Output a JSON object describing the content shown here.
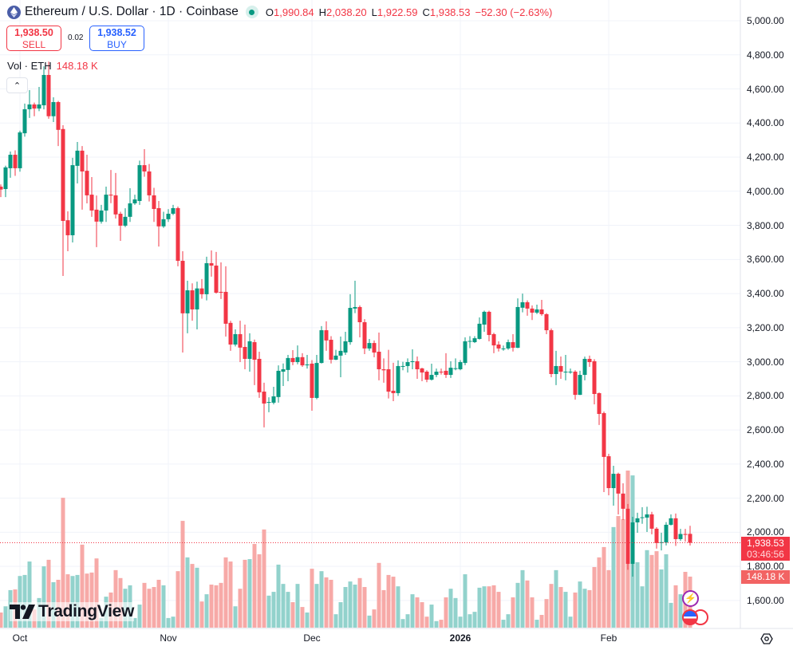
{
  "header": {
    "title": "Ethereum / U.S. Dollar · 1D · Coinbase",
    "market_status": "open",
    "open_label": "O",
    "open": "1,990.84",
    "high_label": "H",
    "high": "2,038.20",
    "low_label": "L",
    "low": "1,922.59",
    "close_label": "C",
    "close": "1,938.53",
    "change": "−52.30 (−2.63%)"
  },
  "trade": {
    "sell_price": "1,938.50",
    "sell_label": "SELL",
    "spread": "0.02",
    "buy_price": "1,938.52",
    "buy_label": "BUY"
  },
  "volume_legend": {
    "label": "Vol · ETH",
    "value": "148.18 K"
  },
  "price_tag": {
    "price": "1,938.53",
    "countdown": "03:46:56"
  },
  "volume_tag": "148.18 K",
  "branding": "TradingView",
  "colors": {
    "up": "#089981",
    "down": "#f23645",
    "volume_up": "#92d2cc",
    "volume_down": "#f7a9a7",
    "grid": "#f0f3fa"
  },
  "chart_data": {
    "type": "candlestick",
    "symbol": "ETH/USD",
    "interval": "1D",
    "y_axis": {
      "range": [
        1500,
        5000
      ],
      "ticks": [
        "5,000.00",
        "4,800.00",
        "4,600.00",
        "4,400.00",
        "4,200.00",
        "4,000.00",
        "3,800.00",
        "3,600.00",
        "3,400.00",
        "3,200.00",
        "3,000.00",
        "2,800.00",
        "2,600.00",
        "2,400.00",
        "2,200.00",
        "2,000.00",
        "1,800.00",
        "1,600.00"
      ],
      "tick_values": [
        5000,
        4800,
        4600,
        4400,
        4200,
        4000,
        3800,
        3600,
        3400,
        3200,
        3000,
        2800,
        2600,
        2400,
        2200,
        2000,
        1800,
        1600
      ]
    },
    "x_axis": {
      "ticks": [
        {
          "label": "Oct",
          "date": "2025-10-01"
        },
        {
          "label": "Nov",
          "date": "2025-11-01"
        },
        {
          "label": "Dec",
          "date": "2025-12-01"
        },
        {
          "label": "2026",
          "date": "2026-01-01"
        },
        {
          "label": "Feb",
          "date": "2026-02-01"
        }
      ]
    },
    "grid": true,
    "volume_unit": "K",
    "columns": [
      "date",
      "open",
      "high",
      "low",
      "close",
      "volume"
    ],
    "candles": [
      [
        "2025-09-27",
        4027,
        4040,
        3966,
        4010,
        44
      ],
      [
        "2025-09-28",
        4013,
        4150,
        3966,
        4140,
        62
      ],
      [
        "2025-09-29",
        4135,
        4233,
        4079,
        4214,
        109
      ],
      [
        "2025-09-30",
        4214,
        4240,
        4090,
        4135,
        111
      ],
      [
        "2025-10-01",
        4135,
        4355,
        4115,
        4345,
        150
      ],
      [
        "2025-10-02",
        4340,
        4514,
        4320,
        4481,
        153
      ],
      [
        "2025-10-03",
        4481,
        4593,
        4430,
        4509,
        192
      ],
      [
        "2025-10-04",
        4509,
        4520,
        4440,
        4485,
        53
      ],
      [
        "2025-10-05",
        4485,
        4612,
        4470,
        4509,
        86
      ],
      [
        "2025-10-06",
        4504,
        4733,
        4480,
        4682,
        178
      ],
      [
        "2025-10-07",
        4682,
        4760,
        4425,
        4440,
        197
      ],
      [
        "2025-10-08",
        4440,
        4551,
        4406,
        4523,
        132
      ],
      [
        "2025-10-09",
        4523,
        4530,
        4265,
        4360,
        139
      ],
      [
        "2025-10-10",
        4365,
        4387,
        3503,
        3826,
        377
      ],
      [
        "2025-10-11",
        3830,
        3882,
        3648,
        3742,
        155
      ],
      [
        "2025-10-12",
        3742,
        4196,
        3700,
        4153,
        150
      ],
      [
        "2025-10-13",
        4149,
        4289,
        4046,
        4238,
        153
      ],
      [
        "2025-10-14",
        4238,
        4265,
        3892,
        4116,
        241
      ],
      [
        "2025-10-15",
        4120,
        4214,
        3929,
        3976,
        157
      ],
      [
        "2025-10-16",
        3980,
        4083,
        3850,
        3887,
        160
      ],
      [
        "2025-10-17",
        3892,
        3975,
        3672,
        3822,
        201
      ],
      [
        "2025-10-18",
        3822,
        3920,
        3810,
        3887,
        28
      ],
      [
        "2025-10-19",
        3887,
        4027,
        3820,
        3980,
        90
      ],
      [
        "2025-10-20",
        3980,
        4125,
        3930,
        3975,
        102
      ],
      [
        "2025-10-21",
        3976,
        4107,
        3840,
        3864,
        167
      ],
      [
        "2025-10-22",
        3868,
        3880,
        3709,
        3798,
        144
      ],
      [
        "2025-10-23",
        3798,
        3900,
        3790,
        3850,
        113
      ],
      [
        "2025-10-24",
        3850,
        4018,
        3820,
        3929,
        123
      ],
      [
        "2025-10-25",
        3929,
        3980,
        3920,
        3952,
        28
      ],
      [
        "2025-10-26",
        3943,
        4180,
        3920,
        4153,
        67
      ],
      [
        "2025-10-27",
        4153,
        4247,
        4085,
        4116,
        130
      ],
      [
        "2025-10-28",
        4116,
        4160,
        3940,
        3976,
        113
      ],
      [
        "2025-10-29",
        3976,
        4020,
        3820,
        3896,
        118
      ],
      [
        "2025-10-30",
        3901,
        3943,
        3676,
        3794,
        139
      ],
      [
        "2025-10-31",
        3794,
        3880,
        3785,
        3836,
        123
      ],
      [
        "2025-11-01",
        3836,
        3895,
        3820,
        3868,
        28
      ],
      [
        "2025-11-02",
        3868,
        3920,
        3860,
        3901,
        32
      ],
      [
        "2025-11-03",
        3901,
        3910,
        3560,
        3592,
        164
      ],
      [
        "2025-11-04",
        3592,
        3648,
        3054,
        3284,
        310
      ],
      [
        "2025-11-05",
        3284,
        3475,
        3167,
        3419,
        204
      ],
      [
        "2025-11-06",
        3419,
        3460,
        3241,
        3307,
        185
      ],
      [
        "2025-11-07",
        3307,
        3470,
        3190,
        3430,
        174
      ],
      [
        "2025-11-08",
        3430,
        3485,
        3370,
        3396,
        76
      ],
      [
        "2025-11-09",
        3396,
        3616,
        3360,
        3578,
        97
      ],
      [
        "2025-11-10",
        3578,
        3653,
        3499,
        3564,
        125
      ],
      [
        "2025-11-11",
        3564,
        3644,
        3400,
        3405,
        123
      ],
      [
        "2025-11-12",
        3410,
        3583,
        3368,
        3405,
        130
      ],
      [
        "2025-11-13",
        3410,
        3560,
        3148,
        3223,
        204
      ],
      [
        "2025-11-14",
        3228,
        3240,
        3064,
        3101,
        192
      ],
      [
        "2025-11-15",
        3101,
        3190,
        3090,
        3162,
        62
      ],
      [
        "2025-11-16",
        3162,
        3241,
        2998,
        3083,
        113
      ],
      [
        "2025-11-17",
        3087,
        3218,
        2956,
        3017,
        197
      ],
      [
        "2025-11-18",
        3017,
        3167,
        2942,
        3120,
        199
      ],
      [
        "2025-11-19",
        3115,
        3130,
        2863,
        3012,
        243
      ],
      [
        "2025-11-20",
        3017,
        3059,
        2788,
        2821,
        213
      ],
      [
        "2025-11-21",
        2825,
        2877,
        2615,
        2755,
        285
      ],
      [
        "2025-11-22",
        2764,
        2792,
        2704,
        2764,
        93
      ],
      [
        "2025-11-23",
        2760,
        2853,
        2750,
        2797,
        104
      ],
      [
        "2025-11-24",
        2793,
        2979,
        2760,
        2947,
        183
      ],
      [
        "2025-11-25",
        2942,
        2990,
        2858,
        2956,
        127
      ],
      [
        "2025-11-26",
        2952,
        3040,
        2886,
        3022,
        104
      ],
      [
        "2025-11-27",
        3022,
        3068,
        2980,
        2998,
        74
      ],
      [
        "2025-11-28",
        2998,
        3096,
        2985,
        3027,
        127
      ],
      [
        "2025-11-29",
        3027,
        3050,
        2970,
        2979,
        60
      ],
      [
        "2025-11-30",
        2984,
        3040,
        2960,
        2984,
        44
      ],
      [
        "2025-12-01",
        2989,
        3010,
        2713,
        2788,
        171
      ],
      [
        "2025-12-02",
        2788,
        3040,
        2780,
        2993,
        127
      ],
      [
        "2025-12-03",
        2993,
        3209,
        2990,
        3185,
        164
      ],
      [
        "2025-12-04",
        3185,
        3237,
        3064,
        3125,
        146
      ],
      [
        "2025-12-05",
        3129,
        3150,
        2990,
        3012,
        139
      ],
      [
        "2025-12-06",
        3012,
        3070,
        3010,
        3036,
        39
      ],
      [
        "2025-12-07",
        3036,
        3148,
        2909,
        3064,
        74
      ],
      [
        "2025-12-08",
        3054,
        3176,
        3040,
        3120,
        118
      ],
      [
        "2025-12-09",
        3115,
        3396,
        3100,
        3316,
        134
      ],
      [
        "2025-12-10",
        3312,
        3475,
        3285,
        3321,
        125
      ],
      [
        "2025-12-11",
        3321,
        3330,
        3143,
        3232,
        144
      ],
      [
        "2025-12-12",
        3232,
        3250,
        3045,
        3078,
        118
      ],
      [
        "2025-12-13",
        3078,
        3134,
        3065,
        3110,
        35
      ],
      [
        "2025-12-14",
        3110,
        3125,
        3026,
        3054,
        53
      ],
      [
        "2025-12-15",
        3059,
        3171,
        2891,
        2956,
        188
      ],
      [
        "2025-12-16",
        2956,
        3020,
        2877,
        2950,
        109
      ],
      [
        "2025-12-17",
        2956,
        3070,
        2785,
        2825,
        153
      ],
      [
        "2025-12-18",
        2830,
        2994,
        2769,
        2816,
        148
      ],
      [
        "2025-12-19",
        2816,
        3008,
        2800,
        2975,
        120
      ],
      [
        "2025-12-20",
        2975,
        3000,
        2950,
        2975,
        25
      ],
      [
        "2025-12-21",
        2975,
        3020,
        2937,
        2998,
        39
      ],
      [
        "2025-12-22",
        2998,
        3073,
        2956,
        3003,
        97
      ],
      [
        "2025-12-23",
        3003,
        3031,
        2900,
        2956,
        88
      ],
      [
        "2025-12-24",
        2961,
        2965,
        2886,
        2937,
        74
      ],
      [
        "2025-12-25",
        2942,
        2950,
        2880,
        2895,
        32
      ],
      [
        "2025-12-26",
        2895,
        2989,
        2890,
        2923,
        67
      ],
      [
        "2025-12-27",
        2923,
        2960,
        2910,
        2942,
        19
      ],
      [
        "2025-12-28",
        2942,
        2960,
        2925,
        2940,
        23
      ],
      [
        "2025-12-29",
        2947,
        3050,
        2905,
        2923,
        88
      ],
      [
        "2025-12-30",
        2923,
        3003,
        2905,
        2965,
        113
      ],
      [
        "2025-12-31",
        2960,
        3020,
        2950,
        2962,
        86
      ],
      [
        "2026-01-01",
        2956,
        3010,
        2950,
        2998,
        32
      ],
      [
        "2026-01-02",
        2993,
        3143,
        2980,
        3120,
        155
      ],
      [
        "2026-01-03",
        3120,
        3150,
        3080,
        3122,
        39
      ],
      [
        "2026-01-04",
        3115,
        3150,
        3110,
        3138,
        46
      ],
      [
        "2026-01-05",
        3134,
        3260,
        3130,
        3223,
        116
      ],
      [
        "2026-01-06",
        3218,
        3300,
        3176,
        3293,
        120
      ],
      [
        "2026-01-07",
        3293,
        3300,
        3120,
        3157,
        120
      ],
      [
        "2026-01-08",
        3162,
        3170,
        3050,
        3096,
        123
      ],
      [
        "2026-01-09",
        3101,
        3120,
        3060,
        3078,
        104
      ],
      [
        "2026-01-10",
        3078,
        3095,
        3065,
        3078,
        23
      ],
      [
        "2026-01-11",
        3078,
        3130,
        3070,
        3115,
        39
      ],
      [
        "2026-01-12",
        3115,
        3162,
        3060,
        3082,
        88
      ],
      [
        "2026-01-13",
        3082,
        3372,
        3080,
        3321,
        130
      ],
      [
        "2026-01-14",
        3317,
        3400,
        3290,
        3349,
        167
      ],
      [
        "2026-01-15",
        3349,
        3360,
        3270,
        3312,
        137
      ],
      [
        "2026-01-16",
        3312,
        3330,
        3245,
        3288,
        88
      ],
      [
        "2026-01-17",
        3288,
        3335,
        3280,
        3307,
        23
      ],
      [
        "2026-01-18",
        3307,
        3363,
        3270,
        3279,
        37
      ],
      [
        "2026-01-19",
        3279,
        3285,
        3162,
        3185,
        83
      ],
      [
        "2026-01-20",
        3185,
        3195,
        2909,
        2928,
        127
      ],
      [
        "2026-01-21",
        2928,
        3064,
        2863,
        2975,
        167
      ],
      [
        "2026-01-22",
        2975,
        3031,
        2900,
        2942,
        118
      ],
      [
        "2026-01-23",
        2942,
        3040,
        2891,
        2942,
        104
      ],
      [
        "2026-01-24",
        2942,
        2960,
        2930,
        2942,
        32
      ],
      [
        "2026-01-25",
        2942,
        2950,
        2778,
        2806,
        102
      ],
      [
        "2026-01-26",
        2806,
        2947,
        2805,
        2923,
        134
      ],
      [
        "2026-01-27",
        2923,
        3030,
        2891,
        3017,
        113
      ],
      [
        "2026-01-28",
        3017,
        3036,
        2970,
        2998,
        109
      ],
      [
        "2026-01-29",
        3003,
        3015,
        2750,
        2811,
        176
      ],
      [
        "2026-01-30",
        2816,
        2820,
        2629,
        2694,
        204
      ],
      [
        "2026-01-31",
        2699,
        2708,
        2236,
        2442,
        234
      ],
      [
        "2026-02-01",
        2446,
        2460,
        2217,
        2259,
        167
      ],
      [
        "2026-02-02",
        2259,
        2390,
        2156,
        2343,
        292
      ],
      [
        "2026-02-03",
        2343,
        2350,
        2105,
        2227,
        324
      ],
      [
        "2026-02-04",
        2227,
        2287,
        2072,
        2138,
        315
      ],
      [
        "2026-02-05",
        2138,
        2166,
        1780,
        1815,
        456
      ],
      [
        "2026-02-06",
        1815,
        2091,
        1740,
        2058,
        442
      ],
      [
        "2026-02-07",
        2058,
        2115,
        1997,
        2082,
        190
      ],
      [
        "2026-02-08",
        2086,
        2147,
        2050,
        2088,
        120
      ],
      [
        "2026-02-09",
        2086,
        2150,
        2002,
        2105,
        225
      ],
      [
        "2026-02-10",
        2105,
        2120,
        1988,
        2021,
        211
      ],
      [
        "2026-02-11",
        2021,
        2030,
        1904,
        1937,
        222
      ],
      [
        "2026-02-12",
        1940,
        1997,
        1894,
        1942,
        169
      ],
      [
        "2026-02-13",
        1940,
        2060,
        1923,
        2044,
        213
      ],
      [
        "2026-02-14",
        2044,
        2105,
        2040,
        2082,
        72
      ],
      [
        "2026-02-15",
        2082,
        2110,
        1920,
        1960,
        123
      ],
      [
        "2026-02-16",
        1960,
        2020,
        1950,
        1990,
        97
      ],
      [
        "2026-02-17",
        1990,
        2020,
        1945,
        1985,
        162
      ],
      [
        "2026-02-18",
        1990.84,
        2038.2,
        1922.59,
        1938.53,
        148.18
      ]
    ]
  }
}
